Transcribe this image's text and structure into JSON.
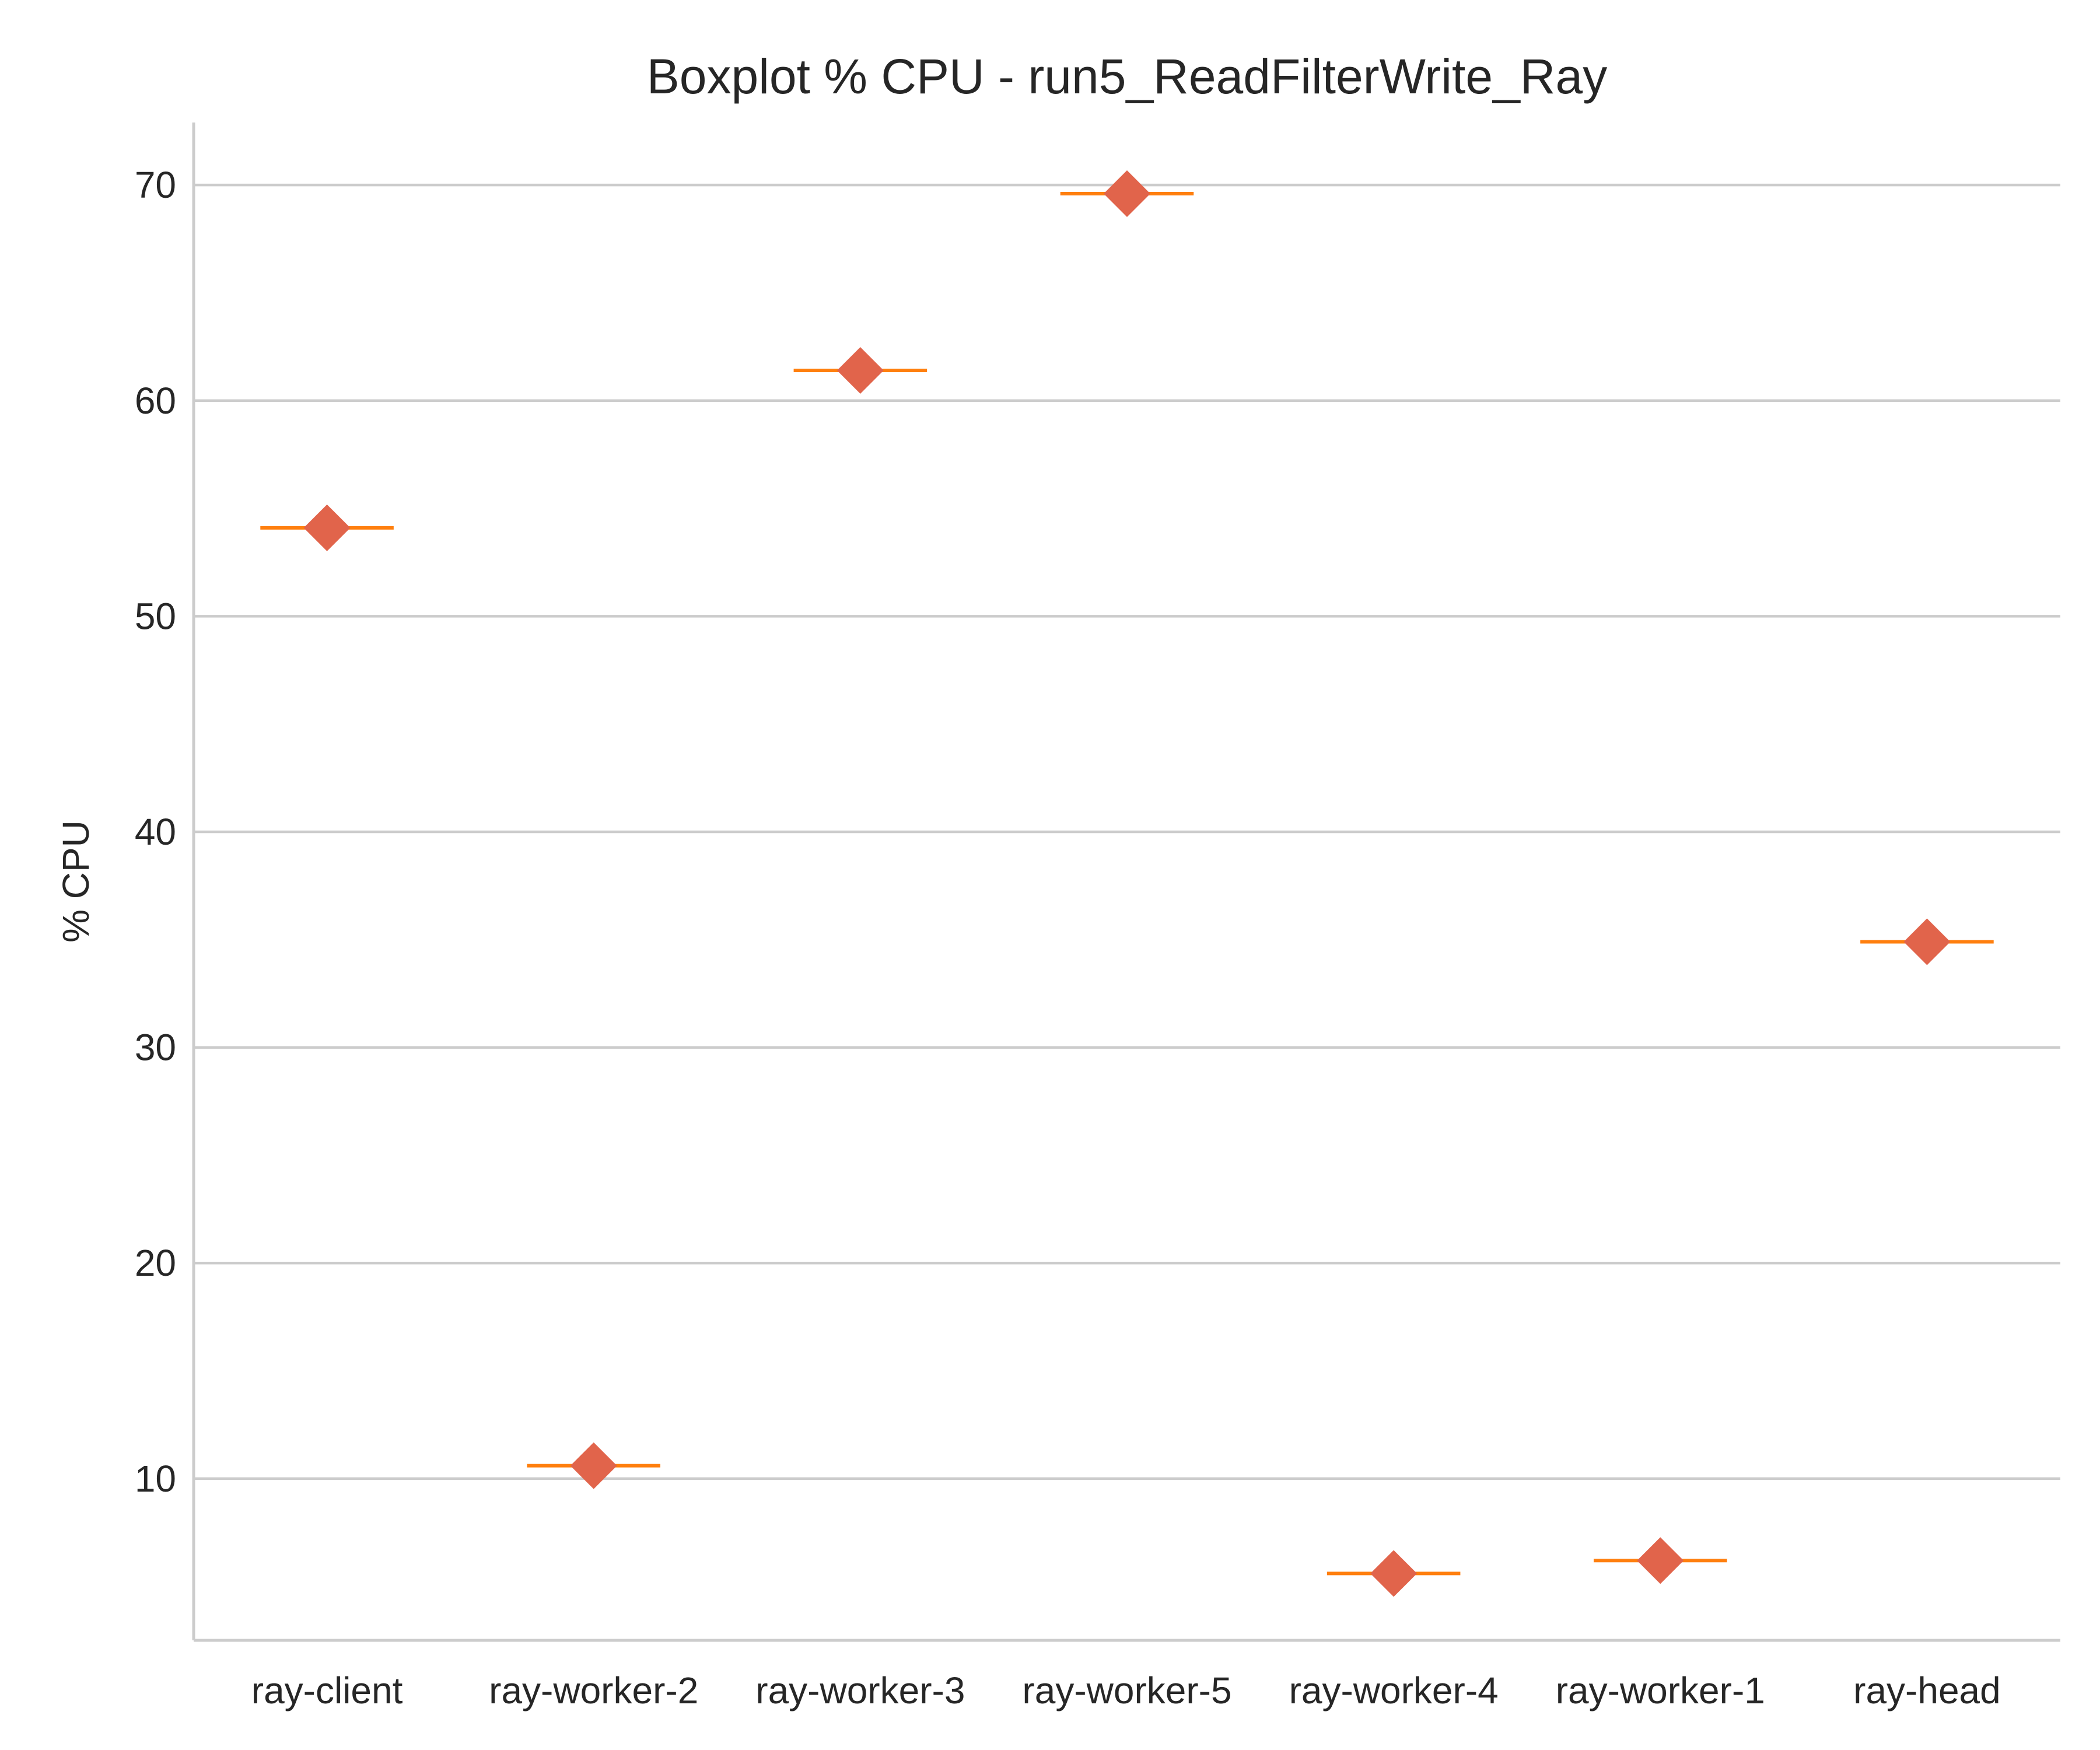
{
  "chart_data": {
    "type": "boxplot",
    "title": "Boxplot % CPU - run5_ReadFilterWrite_Ray",
    "xlabel": "",
    "ylabel": "% CPU",
    "categories": [
      "ray-client",
      "ray-worker-2",
      "ray-worker-3",
      "ray-worker-5",
      "ray-worker-4",
      "ray-worker-1",
      "ray-head"
    ],
    "values": [
      54.1,
      10.6,
      61.4,
      69.6,
      5.6,
      6.2,
      34.9
    ],
    "ylim": [
      2.5,
      72.9
    ],
    "yticks": [
      10,
      20,
      30,
      40,
      50,
      60,
      70
    ],
    "grid": "horizontal",
    "legend": "none",
    "colors": {
      "median": "#ff7f0e",
      "mean_marker": "#e1644b",
      "grid": "#cccccc",
      "text": "#262626"
    }
  }
}
